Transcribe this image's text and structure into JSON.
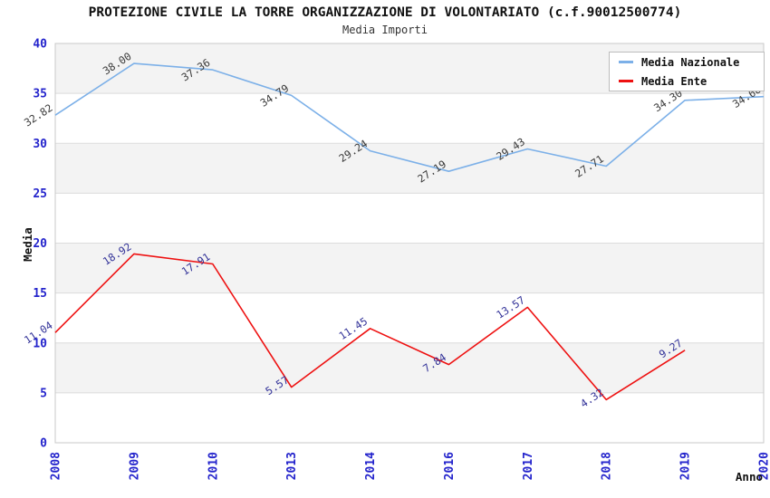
{
  "title": "PROTEZIONE CIVILE LA TORRE ORGANIZZAZIONE DI VOLONTARIATO (c.f.90012500774)",
  "subtitle": "Media Importi",
  "colors": {
    "tick_blue": "#2424cc",
    "band_gray": "#f3f3f3",
    "gridline": "#dcdcdc",
    "plot_border": "#c9c9c9",
    "national_line": "#7cb0e8",
    "entity_line": "#ee1111",
    "national_label": "#3a3a3a",
    "entity_label": "#333399"
  },
  "chart_data": {
    "type": "line",
    "title": "PROTEZIONE CIVILE LA TORRE ORGANIZZAZIONE DI VOLONTARIATO (c.f.90012500774)",
    "subtitle": "Media Importi",
    "xlabel": "Anno",
    "ylabel": "Media",
    "ylim": [
      0,
      40
    ],
    "y_ticks": [
      0,
      5,
      10,
      15,
      20,
      25,
      30,
      35,
      40
    ],
    "categories": [
      "2008",
      "2009",
      "2010",
      "2013",
      "2014",
      "2016",
      "2017",
      "2018",
      "2019",
      "2020"
    ],
    "series": [
      {
        "name": "Media Nazionale",
        "color": "#7cb0e8",
        "label_color": "#3a3a3a",
        "values": [
          32.82,
          38.0,
          37.36,
          34.79,
          29.24,
          27.19,
          29.43,
          27.71,
          34.3,
          34.68
        ],
        "note": "2019 point label occluded by legend box"
      },
      {
        "name": "Media Ente",
        "color": "#ee1111",
        "label_color": "#333399",
        "values": [
          11.04,
          18.92,
          17.91,
          5.57,
          11.45,
          7.84,
          13.57,
          4.32,
          9.27,
          null
        ]
      }
    ],
    "grid": true,
    "legend_position": "top-right",
    "gray_bands_between": [
      [
        5,
        10
      ],
      [
        15,
        20
      ],
      [
        25,
        30
      ],
      [
        35,
        40
      ]
    ]
  }
}
